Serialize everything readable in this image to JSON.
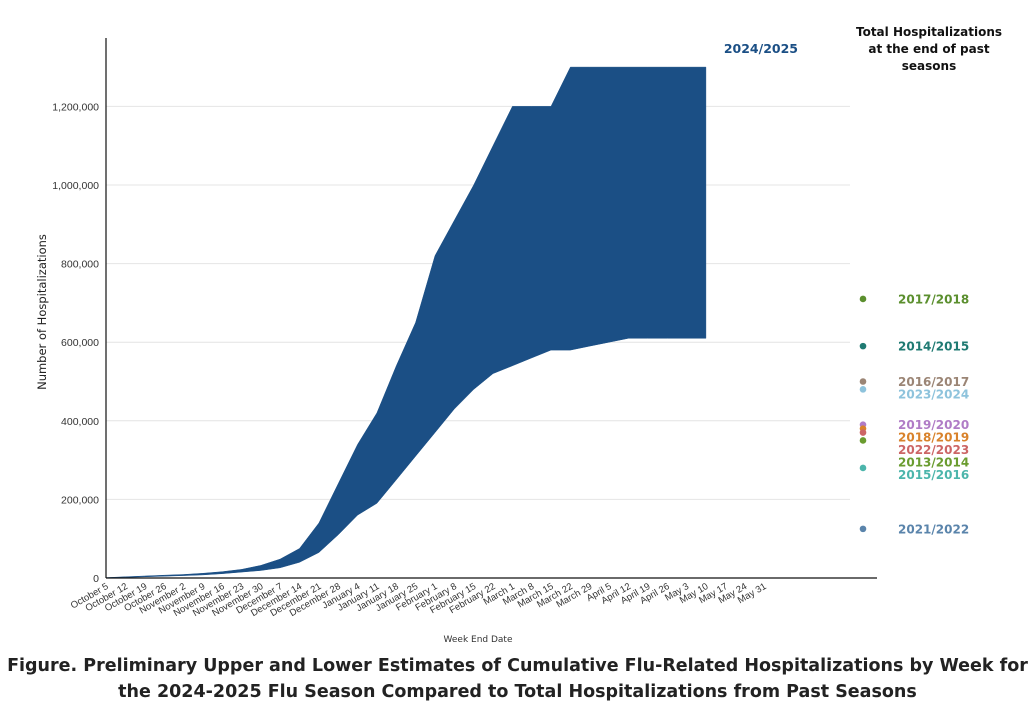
{
  "chart_data": {
    "type": "area",
    "series_label": "2024/2025",
    "title": "Figure. Preliminary Upper and Lower Estimates of Cumulative Flu-Related Hospitalizations by Week for the 2024-2025 Flu Season Compared to Total Hospitalizations from Past Seasons",
    "caption_lines": [
      "Figure. Preliminary Upper and Lower Estimates of Cumulative Flu-Related Hospitalizations by Week for",
      "the 2024-2025 Flu Season Compared to Total Hospitalizations from Past Seasons"
    ],
    "xlabel": "Week End Date",
    "ylabel": "Number of Hospitalizations",
    "ylim": [
      0,
      1350000
    ],
    "yticks": [
      0,
      200000,
      400000,
      600000,
      800000,
      1000000,
      1200000
    ],
    "ytick_labels": [
      "0",
      "200,000",
      "400,000",
      "600,000",
      "800,000",
      "1,000,000",
      "1,200,000"
    ],
    "categories": [
      "October 5",
      "October 12",
      "October 19",
      "October 26",
      "November 2",
      "November 9",
      "November 16",
      "November 23",
      "November 30",
      "December 7",
      "December 14",
      "December 21",
      "December 28",
      "January 4",
      "January 11",
      "January 18",
      "January 25",
      "February 1",
      "February 8",
      "February 15",
      "February 22",
      "March 1",
      "March 8",
      "March 15",
      "March 22",
      "March 29",
      "April 5",
      "April 12",
      "April 19",
      "April 26",
      "May 3",
      "May 10",
      "May 17",
      "May 24",
      "May 31"
    ],
    "upper": [
      1000,
      3000,
      5000,
      7000,
      9000,
      12000,
      16000,
      22000,
      32000,
      48000,
      75000,
      140000,
      240000,
      340000,
      420000,
      540000,
      650000,
      820000,
      910000,
      1000000,
      1100000,
      1200000,
      1200000,
      1200000,
      1300000,
      1300000,
      1300000,
      1300000,
      1300000,
      1300000,
      1300000,
      1300000,
      null,
      null,
      null
    ],
    "lower": [
      500,
      1500,
      3000,
      4500,
      6000,
      8000,
      11000,
      15000,
      19000,
      26000,
      40000,
      65000,
      110000,
      160000,
      190000,
      250000,
      310000,
      370000,
      430000,
      480000,
      520000,
      540000,
      560000,
      580000,
      580000,
      590000,
      600000,
      610000,
      610000,
      610000,
      610000,
      610000,
      null,
      null,
      null
    ],
    "fill_color": "#1b4f85",
    "past_seasons_title_lines": [
      "Total Hospitalizations",
      "at the end of past",
      "seasons"
    ],
    "past_seasons": [
      {
        "season": "2017/2018",
        "value": 710000,
        "color": "#5b8f2e"
      },
      {
        "season": "2014/2015",
        "value": 590000,
        "color": "#1f7a72"
      },
      {
        "season": "2016/2017",
        "value": 500000,
        "color": "#9b8575"
      },
      {
        "season": "2023/2024",
        "value": 480000,
        "color": "#8ec3dc"
      },
      {
        "season": "2019/2020",
        "value": 390000,
        "color": "#b07cc6"
      },
      {
        "season": "2018/2019",
        "value": 380000,
        "color": "#d9822b"
      },
      {
        "season": "2022/2023",
        "value": 370000,
        "color": "#cc6666"
      },
      {
        "season": "2013/2014",
        "value": 350000,
        "color": "#6a9c2f"
      },
      {
        "season": "2015/2016",
        "value": 280000,
        "color": "#4cb5ab"
      },
      {
        "season": "2021/2022",
        "value": 125000,
        "color": "#5a84ab"
      }
    ]
  }
}
